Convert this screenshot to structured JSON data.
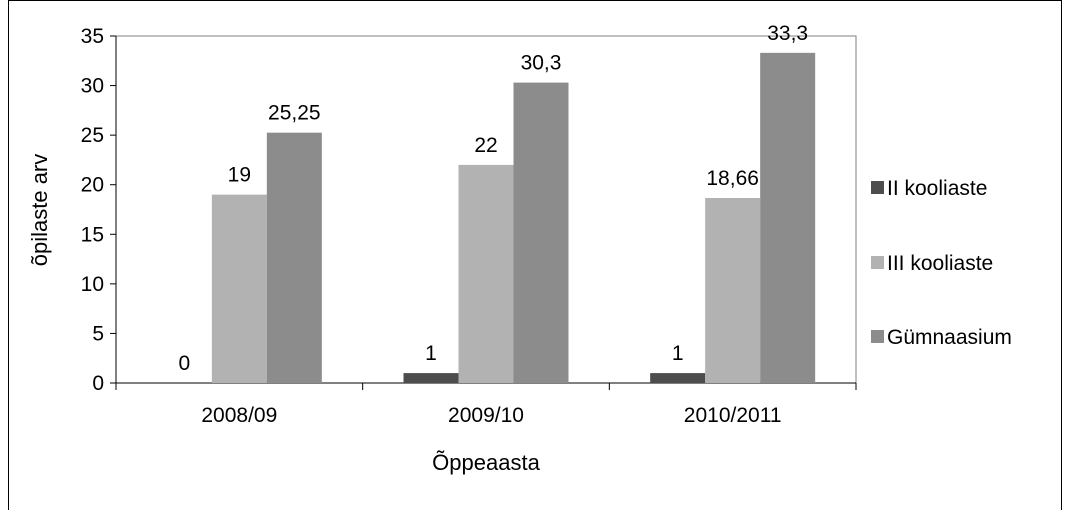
{
  "chart_data": {
    "type": "bar",
    "title": "",
    "xlabel": "Õppeaasta",
    "ylabel": "õpilaste arv",
    "ylim": [
      0,
      35
    ],
    "yticks": [
      0,
      5,
      10,
      15,
      20,
      25,
      30,
      35
    ],
    "categories": [
      "2008/09",
      "2009/10",
      "2010/2011"
    ],
    "series": [
      {
        "name": "II kooliaste",
        "values": [
          0,
          1,
          1
        ],
        "labels": [
          "0",
          "1",
          "1"
        ],
        "color": "#4d4d4d"
      },
      {
        "name": "III kooliaste",
        "values": [
          19,
          22,
          18.66
        ],
        "labels": [
          "19",
          "22",
          "18,66"
        ],
        "color": "#b2b2b2"
      },
      {
        "name": "Gümnaasium",
        "values": [
          25.25,
          30.3,
          33.3
        ],
        "labels": [
          "25,25",
          "30,3",
          "33,3"
        ],
        "color": "#8c8c8c"
      }
    ],
    "grid": false,
    "legend": "right"
  }
}
